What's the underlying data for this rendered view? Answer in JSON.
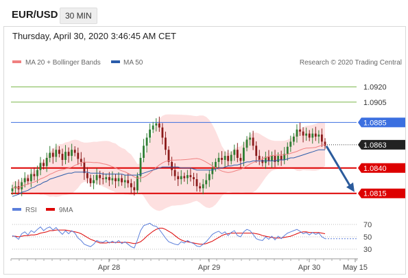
{
  "header": {
    "symbol": "EUR/USD",
    "timeframe": "30 MIN",
    "timestamp": "Thursday, April 30, 2020 3:46:45 AM CET"
  },
  "price_legend": [
    {
      "name": "MA 20 + Bollinger Bands",
      "color": "#f08080"
    },
    {
      "name": "MA 50",
      "color": "#2a5caa"
    }
  ],
  "credit": "Research © 2020 Trading Central",
  "rsi_legend": [
    {
      "name": "RSI",
      "color": "#5b7fdb"
    },
    {
      "name": "9MA",
      "color": "#dd0000"
    }
  ],
  "colors": {
    "up_candle": "#2e7d32",
    "down_candle": "#8b1a1a",
    "resistance_green": "#7ab648",
    "pivot_blue": "#3b6fe0",
    "support_red": "#dd0000",
    "current_price": "#222222",
    "arrow": "#2b5b9c",
    "bollinger_fill": "#fde0e0"
  },
  "chart_data": [
    {
      "type": "line",
      "name": "price",
      "x_ticks": [
        "Apr 28",
        "Apr 29",
        "Apr 30",
        "May 15"
      ],
      "ylim": [
        1.0806,
        1.0936
      ],
      "levels": [
        {
          "value": 1.092,
          "label": "1.0920",
          "kind": "resistance"
        },
        {
          "value": 1.0905,
          "label": "1.0905",
          "kind": "resistance"
        },
        {
          "value": 1.0885,
          "label": "1.0885",
          "kind": "pivot"
        },
        {
          "value": 1.0863,
          "label": "1.0863",
          "kind": "current"
        },
        {
          "value": 1.084,
          "label": "1.0840",
          "kind": "support"
        },
        {
          "value": 1.0815,
          "label": "1.0815",
          "kind": "support"
        }
      ],
      "closes": [
        1.082,
        1.0822,
        1.0819,
        1.0826,
        1.083,
        1.0827,
        1.0834,
        1.0832,
        1.0838,
        1.0845,
        1.0842,
        1.085,
        1.0855,
        1.0851,
        1.0858,
        1.0854,
        1.0848,
        1.0856,
        1.0852,
        1.0858,
        1.0855,
        1.0849,
        1.0846,
        1.0835,
        1.083,
        1.0825,
        1.0828,
        1.0833,
        1.083,
        1.0829,
        1.0831,
        1.0828,
        1.083,
        1.0827,
        1.083,
        1.0826,
        1.0828,
        1.0825,
        1.0821,
        1.0818,
        1.0832,
        1.085,
        1.0862,
        1.087,
        1.0878,
        1.0882,
        1.0884,
        1.088,
        1.087,
        1.0858,
        1.0846,
        1.0838,
        1.0832,
        1.0829,
        1.0832,
        1.083,
        1.0833,
        1.0831,
        1.0829,
        1.0822,
        1.082,
        1.0824,
        1.0828,
        1.0834,
        1.084,
        1.0846,
        1.085,
        1.0848,
        1.0852,
        1.0847,
        1.0853,
        1.0858,
        1.085,
        1.0847,
        1.086,
        1.0868,
        1.087,
        1.0862,
        1.0852,
        1.0848,
        1.0845,
        1.0851,
        1.0847,
        1.0852,
        1.0846,
        1.0852,
        1.0848,
        1.0854,
        1.0861,
        1.0866,
        1.0871,
        1.0878,
        1.0876,
        1.0872,
        1.0874,
        1.087,
        1.0874,
        1.0871,
        1.0873,
        1.0866,
        1.0862
      ],
      "ma50": [
        1.0812,
        1.0813,
        1.0814,
        1.0816,
        1.0817,
        1.0818,
        1.082,
        1.0821,
        1.0823,
        1.0824,
        1.0826,
        1.0827,
        1.0829,
        1.083,
        1.0831,
        1.0832,
        1.0833,
        1.0834,
        1.0835,
        1.0835,
        1.0836,
        1.0836,
        1.0836,
        1.0836,
        1.0836,
        1.0835,
        1.0835,
        1.0835,
        1.0835,
        1.0834,
        1.0834,
        1.0834,
        1.0834,
        1.0834,
        1.0834,
        1.0834,
        1.0833,
        1.0833,
        1.0833,
        1.0833,
        1.0833,
        1.0834,
        1.0835,
        1.0836,
        1.0837,
        1.0838,
        1.0839,
        1.084,
        1.0841,
        1.0841,
        1.0841,
        1.0841,
        1.0841,
        1.0841,
        1.084,
        1.084,
        1.084,
        1.084,
        1.0839,
        1.0838,
        1.0838,
        1.0838,
        1.0838,
        1.0838,
        1.0838,
        1.0839,
        1.084,
        1.084,
        1.0841,
        1.0842,
        1.0842,
        1.0843,
        1.0843,
        1.0844,
        1.0845,
        1.0846,
        1.0846,
        1.0847,
        1.0847,
        1.0847,
        1.0847,
        1.0847,
        1.0847,
        1.0847,
        1.0847,
        1.0848,
        1.0848,
        1.0848,
        1.0849,
        1.085,
        1.085,
        1.0851,
        1.0852,
        1.0853,
        1.0854,
        1.0855,
        1.0856,
        1.0857,
        1.0858,
        1.0858,
        1.0858
      ]
    },
    {
      "type": "line",
      "name": "rsi",
      "ticks": [
        30,
        50,
        70
      ],
      "ylim": [
        20,
        80
      ],
      "rsi": [
        52,
        50,
        46,
        55,
        58,
        53,
        60,
        57,
        62,
        66,
        60,
        64,
        66,
        61,
        65,
        59,
        54,
        60,
        55,
        60,
        56,
        48,
        44,
        38,
        36,
        34,
        38,
        44,
        42,
        41,
        44,
        40,
        43,
        40,
        44,
        39,
        42,
        38,
        34,
        32,
        45,
        60,
        68,
        70,
        72,
        68,
        67,
        62,
        55,
        48,
        42,
        40,
        38,
        37,
        42,
        40,
        44,
        41,
        39,
        35,
        34,
        38,
        42,
        48,
        54,
        57,
        59,
        55,
        58,
        52,
        57,
        60,
        52,
        50,
        58,
        62,
        60,
        54,
        47,
        45,
        44,
        50,
        46,
        51,
        45,
        51,
        47,
        52,
        56,
        58,
        60,
        62,
        59,
        55,
        57,
        53,
        57,
        54,
        56,
        50,
        47
      ],
      "ma9": [
        51,
        51,
        50,
        51,
        52,
        52,
        53,
        53,
        54,
        56,
        57,
        58,
        60,
        60,
        61,
        61,
        61,
        61,
        60,
        59,
        58,
        57,
        55,
        52,
        49,
        46,
        44,
        42,
        40,
        40,
        40,
        41,
        41,
        41,
        41,
        41,
        41,
        41,
        40,
        39,
        40,
        42,
        46,
        51,
        55,
        59,
        62,
        64,
        64,
        62,
        59,
        56,
        52,
        48,
        45,
        43,
        42,
        41,
        40,
        39,
        38,
        38,
        39,
        41,
        43,
        46,
        49,
        52,
        54,
        55,
        56,
        56,
        56,
        56,
        56,
        56,
        56,
        56,
        55,
        54,
        52,
        51,
        50,
        49,
        48,
        48,
        48,
        49,
        50,
        51,
        53,
        55,
        57,
        58,
        58,
        57,
        57,
        57,
        57,
        56,
        55
      ]
    }
  ]
}
